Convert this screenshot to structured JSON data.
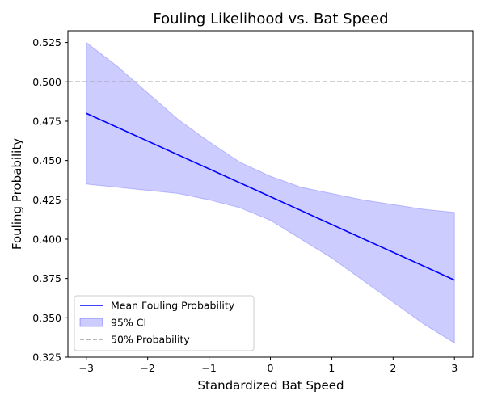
{
  "chart_data": {
    "type": "line",
    "title": "Fouling Likelihood vs. Bat Speed",
    "xlabel": "Standardized Bat Speed",
    "ylabel": "Fouling Probability",
    "xlim": [
      -3.3,
      3.3
    ],
    "ylim": [
      0.325,
      0.5325
    ],
    "x_ticks": [
      -3,
      -2,
      -1,
      0,
      1,
      2,
      3
    ],
    "x_tick_labels": [
      "−3",
      "−2",
      "−1",
      "0",
      "1",
      "2",
      "3"
    ],
    "y_ticks": [
      0.325,
      0.35,
      0.375,
      0.4,
      0.425,
      0.45,
      0.475,
      0.5,
      0.525
    ],
    "y_tick_labels": [
      "0.325",
      "0.350",
      "0.375",
      "0.400",
      "0.425",
      "0.450",
      "0.475",
      "0.500",
      "0.525"
    ],
    "grid": false,
    "legend_position": "lower-left",
    "series": [
      {
        "name": "Mean Fouling Probability",
        "kind": "line",
        "color": "#0000ff",
        "x": [
          -3,
          3
        ],
        "y": [
          0.48,
          0.374
        ]
      },
      {
        "name": "95% CI",
        "kind": "band",
        "color": "#0000ff",
        "opacity": 0.2,
        "x": [
          -3,
          -2.5,
          -2,
          -1.5,
          -1,
          -0.5,
          0,
          0.5,
          1,
          1.5,
          2,
          2.5,
          3
        ],
        "upper": [
          0.525,
          0.51,
          0.493,
          0.476,
          0.462,
          0.449,
          0.44,
          0.433,
          0.429,
          0.425,
          0.422,
          0.419,
          0.417
        ],
        "lower": [
          0.435,
          0.433,
          0.431,
          0.429,
          0.425,
          0.42,
          0.412,
          0.4,
          0.388,
          0.374,
          0.36,
          0.346,
          0.334
        ]
      },
      {
        "name": "50% Probability",
        "kind": "hline",
        "color": "#a0a0a0",
        "dashed": true,
        "y": 0.5
      }
    ]
  }
}
